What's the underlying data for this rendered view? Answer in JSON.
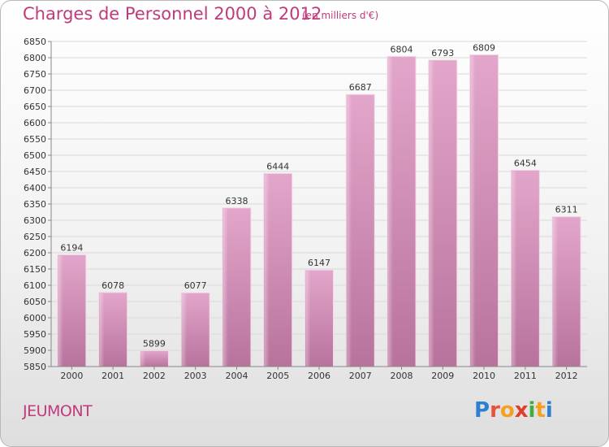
{
  "chart_data": {
    "type": "bar",
    "title": "Charges de Personnel 2000 à 2012",
    "subtitle": "(en milliers d'€)",
    "categories": [
      "2000",
      "2001",
      "2002",
      "2003",
      "2004",
      "2005",
      "2006",
      "2007",
      "2008",
      "2009",
      "2010",
      "2011",
      "2012"
    ],
    "values": [
      6194,
      6078,
      5899,
      6077,
      6338,
      6444,
      6147,
      6687,
      6804,
      6793,
      6809,
      6454,
      6311
    ],
    "ylim": [
      5850,
      6850
    ],
    "ytick_step": 50,
    "grid": true,
    "bar_color": "#d88cb5"
  },
  "commune": "JEUMONT",
  "logo": {
    "letters": [
      {
        "char": "P",
        "color": "#2f7fd0"
      },
      {
        "char": "r",
        "color": "#e8503a"
      },
      {
        "char": "o",
        "color": "#f3a11e"
      },
      {
        "char": "x",
        "color": "#e23c2a"
      },
      {
        "char": "i",
        "color": "#3fae3a"
      },
      {
        "char": "t",
        "color": "#f3a11e"
      },
      {
        "char": "i",
        "color": "#2f7fd0"
      }
    ]
  }
}
